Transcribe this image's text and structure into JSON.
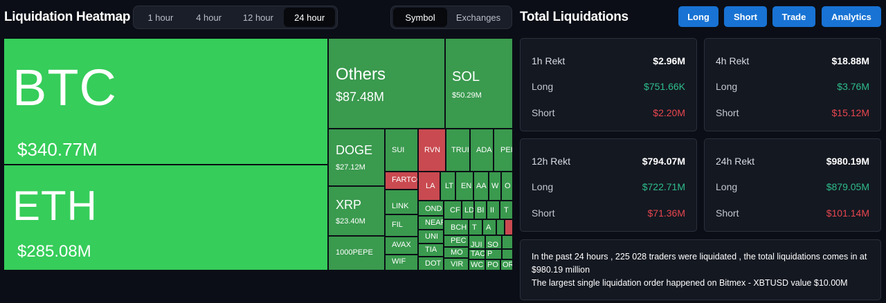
{
  "header": {
    "title": "Liquidation Heatmap",
    "time_options": [
      "1 hour",
      "4 hour",
      "12 hour",
      "24 hour"
    ],
    "time_selected": "24 hour",
    "view_options": [
      "Symbol",
      "Exchanges"
    ],
    "view_selected": "Symbol"
  },
  "right_header": {
    "title": "Total Liquidations",
    "buttons": [
      "Long",
      "Short",
      "Trade",
      "Analytics"
    ]
  },
  "colors": {
    "tile_green": "#3a9a4e",
    "tile_bright_green": "#36cd5a",
    "tile_red": "#c94a50",
    "positive": "#2ebd8c",
    "negative": "#e8464f",
    "button": "#1873d4"
  },
  "heatmap": {
    "btc": {
      "symbol": "BTC",
      "value": "$340.77M"
    },
    "eth": {
      "symbol": "ETH",
      "value": "$285.08M"
    },
    "others": {
      "symbol": "Others",
      "value": "$87.48M"
    },
    "sol": {
      "symbol": "SOL",
      "value": "$50.29M"
    },
    "doge": {
      "symbol": "DOGE",
      "value": "$27.12M"
    },
    "xrp": {
      "symbol": "XRP",
      "value": "$23.40M"
    },
    "pepe": {
      "symbol": "1000PEPE"
    },
    "small": [
      "SUI",
      "RVN",
      "TRUI",
      "ADA",
      "PEI",
      "FARTCO",
      "LA",
      "LT",
      "EN",
      "AA",
      "W",
      "O",
      "LINK",
      "OND",
      "FIL",
      "NEAR",
      "AVAX",
      "UNI",
      "WIF",
      "TIA",
      "DOT",
      "CF",
      "LD",
      "BI",
      "II",
      "T",
      "BCH",
      "T",
      "A",
      "PEC",
      "MO",
      "VIR",
      "JUI",
      "SO",
      "TAC",
      "P",
      "WC",
      "PO",
      "OR"
    ]
  },
  "stats": {
    "h1": {
      "label": "1h Rekt",
      "total": "$2.96M",
      "long_label": "Long",
      "long": "$751.66K",
      "short_label": "Short",
      "short": "$2.20M"
    },
    "h4": {
      "label": "4h Rekt",
      "total": "$18.88M",
      "long_label": "Long",
      "long": "$3.76M",
      "short_label": "Short",
      "short": "$15.12M"
    },
    "h12": {
      "label": "12h Rekt",
      "total": "$794.07M",
      "long_label": "Long",
      "long": "$722.71M",
      "short_label": "Short",
      "short": "$71.36M"
    },
    "h24": {
      "label": "24h Rekt",
      "total": "$980.19M",
      "long_label": "Long",
      "long": "$879.05M",
      "short_label": "Short",
      "short": "$101.14M"
    }
  },
  "summary": {
    "line1": "In the past 24 hours , 225 028 traders were liquidated , the total liquidations comes in at $980.19 million",
    "line2": "The largest single liquidation order happened on Bitmex - XBTUSD value $10.00M"
  }
}
